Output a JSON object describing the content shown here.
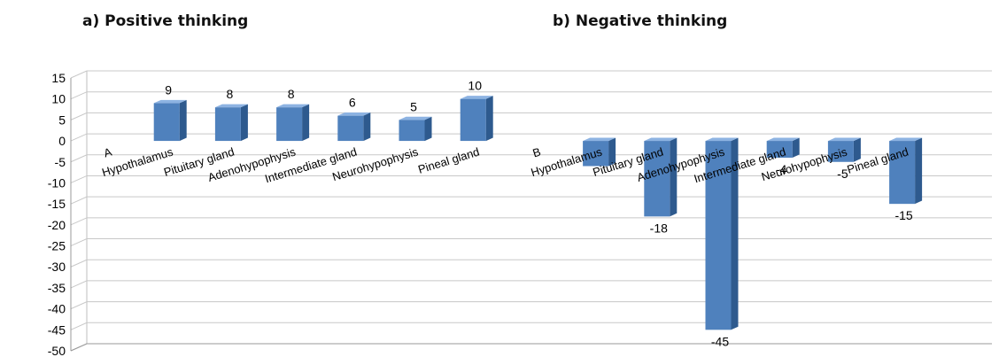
{
  "titles": {
    "a": "a)   Positive thinking",
    "b": "b) Negative thinking"
  },
  "chart_data": {
    "type": "bar",
    "categories": [
      "A",
      "Hypothalamus",
      "Pituitary gland",
      "Adenohypophysis",
      "Intermediate gland",
      "Neurohypophysis",
      "Pineal gland",
      "B",
      "Hypothalamus",
      "Pituitary gland",
      "Adenohypophysis",
      "Intermediate gland",
      "Neurohypophysis",
      "Pineal gland"
    ],
    "values": [
      null,
      9,
      8,
      8,
      6,
      5,
      10,
      null,
      -6,
      -18,
      -45,
      -4,
      -5,
      -15
    ],
    "data_labels": [
      "",
      "9",
      "8",
      "8",
      "6",
      "5",
      "10",
      "",
      "",
      "-18",
      "-45",
      "-4",
      "-5",
      "-15"
    ],
    "y_ticks": [
      15,
      10,
      5,
      0,
      -5,
      -10,
      -15,
      -20,
      -25,
      -30,
      -35,
      -40,
      -45,
      -50
    ],
    "ylim": [
      -50,
      15
    ],
    "grid": true,
    "legend": "none",
    "bar_color": "#4f81bd"
  }
}
